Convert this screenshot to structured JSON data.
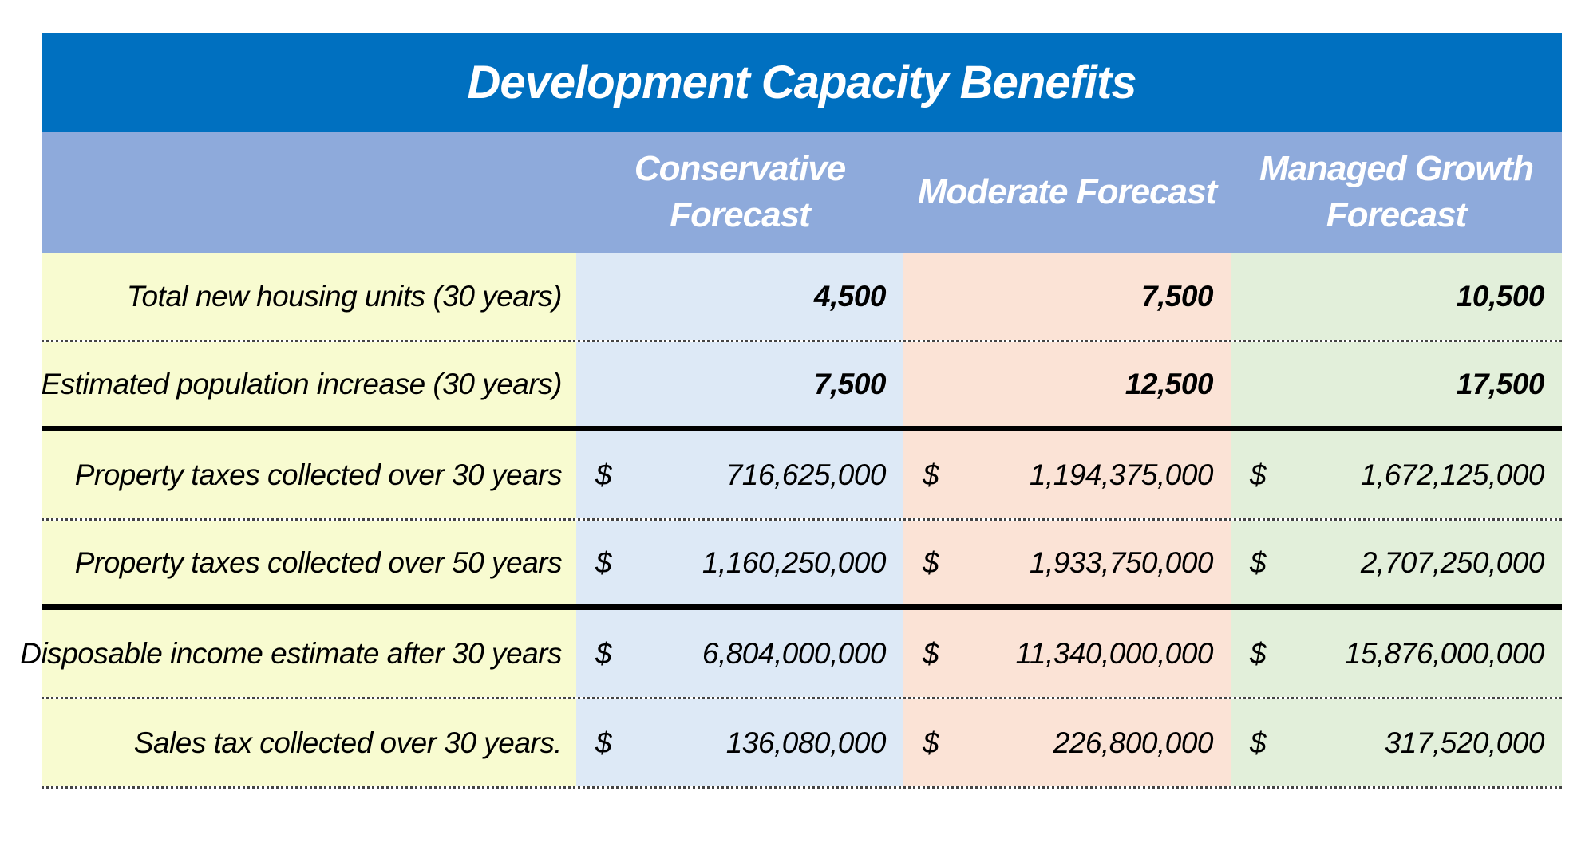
{
  "title": "Development Capacity Benefits",
  "columns": [
    "",
    "Conservative\nForecast",
    "Moderate Forecast",
    "Managed Growth\nForecast"
  ],
  "rows": [
    {
      "label": "Total new housing units (30 years)",
      "values": [
        "4,500",
        "7,500",
        "10,500"
      ],
      "currency": [
        "",
        "",
        ""
      ]
    },
    {
      "label": "Estimated population increase (30 years)",
      "values": [
        "7,500",
        "12,500",
        "17,500"
      ],
      "currency": [
        "",
        "",
        ""
      ]
    },
    {
      "label": "Property taxes collected over 30 years",
      "values": [
        "716,625,000",
        "1,194,375,000",
        "1,672,125,000"
      ],
      "currency": [
        "$",
        "$",
        "$"
      ]
    },
    {
      "label": "Property taxes collected over 50 years",
      "values": [
        "1,160,250,000",
        "1,933,750,000",
        "2,707,250,000"
      ],
      "currency": [
        "$",
        "$",
        "$"
      ]
    },
    {
      "label": "Disposable income estimate after 30 years",
      "values": [
        "6,804,000,000",
        "11,340,000,000",
        "15,876,000,000"
      ],
      "currency": [
        "$",
        "$",
        "$"
      ]
    },
    {
      "label": "Sales tax collected over 30 years.",
      "values": [
        "136,080,000",
        "226,800,000",
        "317,520,000"
      ],
      "currency": [
        "$",
        "$",
        "$"
      ]
    }
  ],
  "colors": {
    "title_bg": "#0070c0",
    "header_bg": "#8eaadb",
    "label_bg": "#f8fbd0",
    "conservative_bg": "#dde9f6",
    "moderate_bg": "#fbe3d6",
    "managed_bg": "#e2efda"
  }
}
